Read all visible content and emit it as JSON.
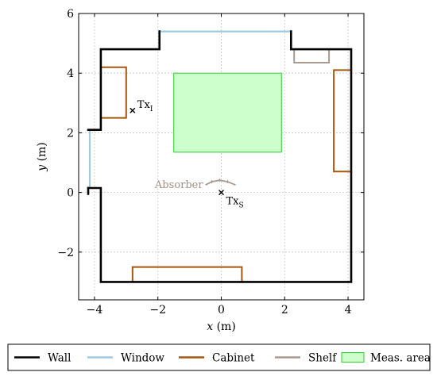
{
  "chart_data": {
    "type": "floor-plan",
    "xlabel_var": "x",
    "xlabel_unit": " (m)",
    "ylabel_var": "y",
    "ylabel_unit": " (m)",
    "xlim": [
      -4.5,
      4.5
    ],
    "ylim": [
      -3.6,
      6
    ],
    "xticks": [
      -4,
      -2,
      0,
      2,
      4
    ],
    "yticks": [
      -2,
      0,
      2,
      4,
      6
    ],
    "grid": true,
    "legend_position": "bottom",
    "colors": {
      "wall": "#000000",
      "window": "#9ecae1",
      "cabinet": "#a5570f",
      "shelf": "#a89a90",
      "meas_area_fill": "#ccffcc",
      "meas_area_edge": "#33cc33"
    },
    "walls": [
      [
        [
          -4.2,
          0.15
        ],
        [
          -4.2,
          -0.05
        ]
      ],
      [
        [
          -4.2,
          0.15
        ],
        [
          -3.8,
          0.15
        ],
        [
          -3.8,
          -3.0
        ],
        [
          4.1,
          -3.0
        ],
        [
          4.1,
          4.8
        ],
        [
          2.2,
          4.8
        ],
        [
          2.2,
          5.4
        ]
      ],
      [
        [
          -4.2,
          2.1
        ],
        [
          -3.8,
          2.1
        ],
        [
          -3.8,
          4.8
        ],
        [
          -1.95,
          4.8
        ],
        [
          -1.95,
          5.4
        ]
      ]
    ],
    "window_segments": [
      [
        [
          -1.95,
          5.4
        ],
        [
          2.2,
          5.4
        ]
      ],
      [
        [
          -4.15,
          0.15
        ],
        [
          -4.15,
          2.1
        ]
      ]
    ],
    "cabinets": [
      [
        [
          -3.8,
          4.2
        ],
        [
          -3.0,
          4.2
        ],
        [
          -3.0,
          2.5
        ],
        [
          -3.8,
          2.5
        ]
      ],
      [
        [
          -2.8,
          -3.0
        ],
        [
          -2.8,
          -2.5
        ],
        [
          0.65,
          -2.5
        ],
        [
          0.65,
          -3.0
        ]
      ],
      [
        [
          4.1,
          4.1
        ],
        [
          3.55,
          4.1
        ],
        [
          3.55,
          0.7
        ],
        [
          4.1,
          0.7
        ]
      ]
    ],
    "shelf": [
      [
        2.3,
        4.8
      ],
      [
        2.3,
        4.35
      ],
      [
        3.4,
        4.35
      ],
      [
        3.4,
        4.8
      ]
    ],
    "absorber": [
      [
        -0.5,
        0.25
      ],
      [
        -0.3,
        0.36
      ],
      [
        -0.05,
        0.41
      ],
      [
        0.2,
        0.36
      ],
      [
        0.45,
        0.25
      ]
    ],
    "meas_area": {
      "x0": -1.5,
      "x1": 1.9,
      "y0": 1.35,
      "y1": 4.0
    },
    "markers": [
      {
        "label_main": "Tx",
        "label_sub": "I",
        "x": -2.8,
        "y": 2.75
      },
      {
        "label_main": "Tx",
        "label_sub": "S",
        "x": 0.0,
        "y": 0.0
      }
    ],
    "absorber_label": "Absorber",
    "legend": [
      {
        "label": "Wall",
        "kind": "line",
        "color": "#000000"
      },
      {
        "label": "Window",
        "kind": "line",
        "color": "#9ecae1"
      },
      {
        "label": "Cabinet",
        "kind": "line",
        "color": "#a5570f"
      },
      {
        "label": "Shelf",
        "kind": "line",
        "color": "#a89a90"
      },
      {
        "label": "Meas. area",
        "kind": "patch",
        "color": "#ccffcc",
        "edge": "#33cc33"
      }
    ]
  }
}
